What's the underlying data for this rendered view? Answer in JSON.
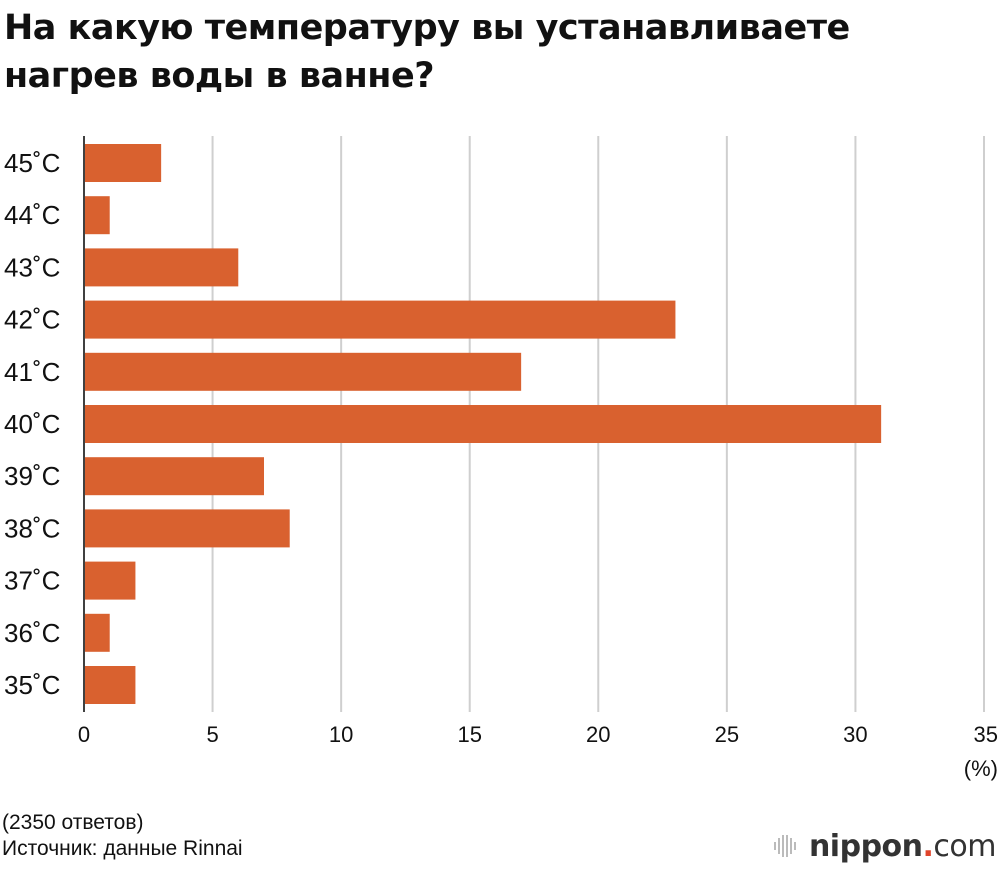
{
  "title": "На какую температуру вы устанавливаете нагрев воды в ванне?",
  "chart_data": {
    "type": "bar",
    "orientation": "horizontal",
    "title": "На какую температуру вы устанавливаете нагрев воды в ванне?",
    "categories": [
      "45˚C",
      "44˚C",
      "43˚C",
      "42˚C",
      "41˚C",
      "40˚C",
      "39˚C",
      "38˚C",
      "37˚C",
      "36˚C",
      "35˚C"
    ],
    "values": [
      3,
      1,
      6,
      23,
      17,
      31,
      7,
      8,
      2,
      1,
      2
    ],
    "xlim": [
      0,
      35
    ],
    "xticks": [
      "0",
      "5",
      "10",
      "15",
      "20",
      "25",
      "30",
      "35"
    ],
    "unit_label": "(%)",
    "grid": true,
    "bar_color": "#d9612f"
  },
  "notes": {
    "responses": "(2350 ответов)",
    "source": "Источник: данные Rinnai"
  },
  "logo": {
    "name": "nippon",
    "dot": ".",
    "suffix": "com",
    "dot_color": "#e0442b",
    "icon": "nippon-logo-icon"
  }
}
